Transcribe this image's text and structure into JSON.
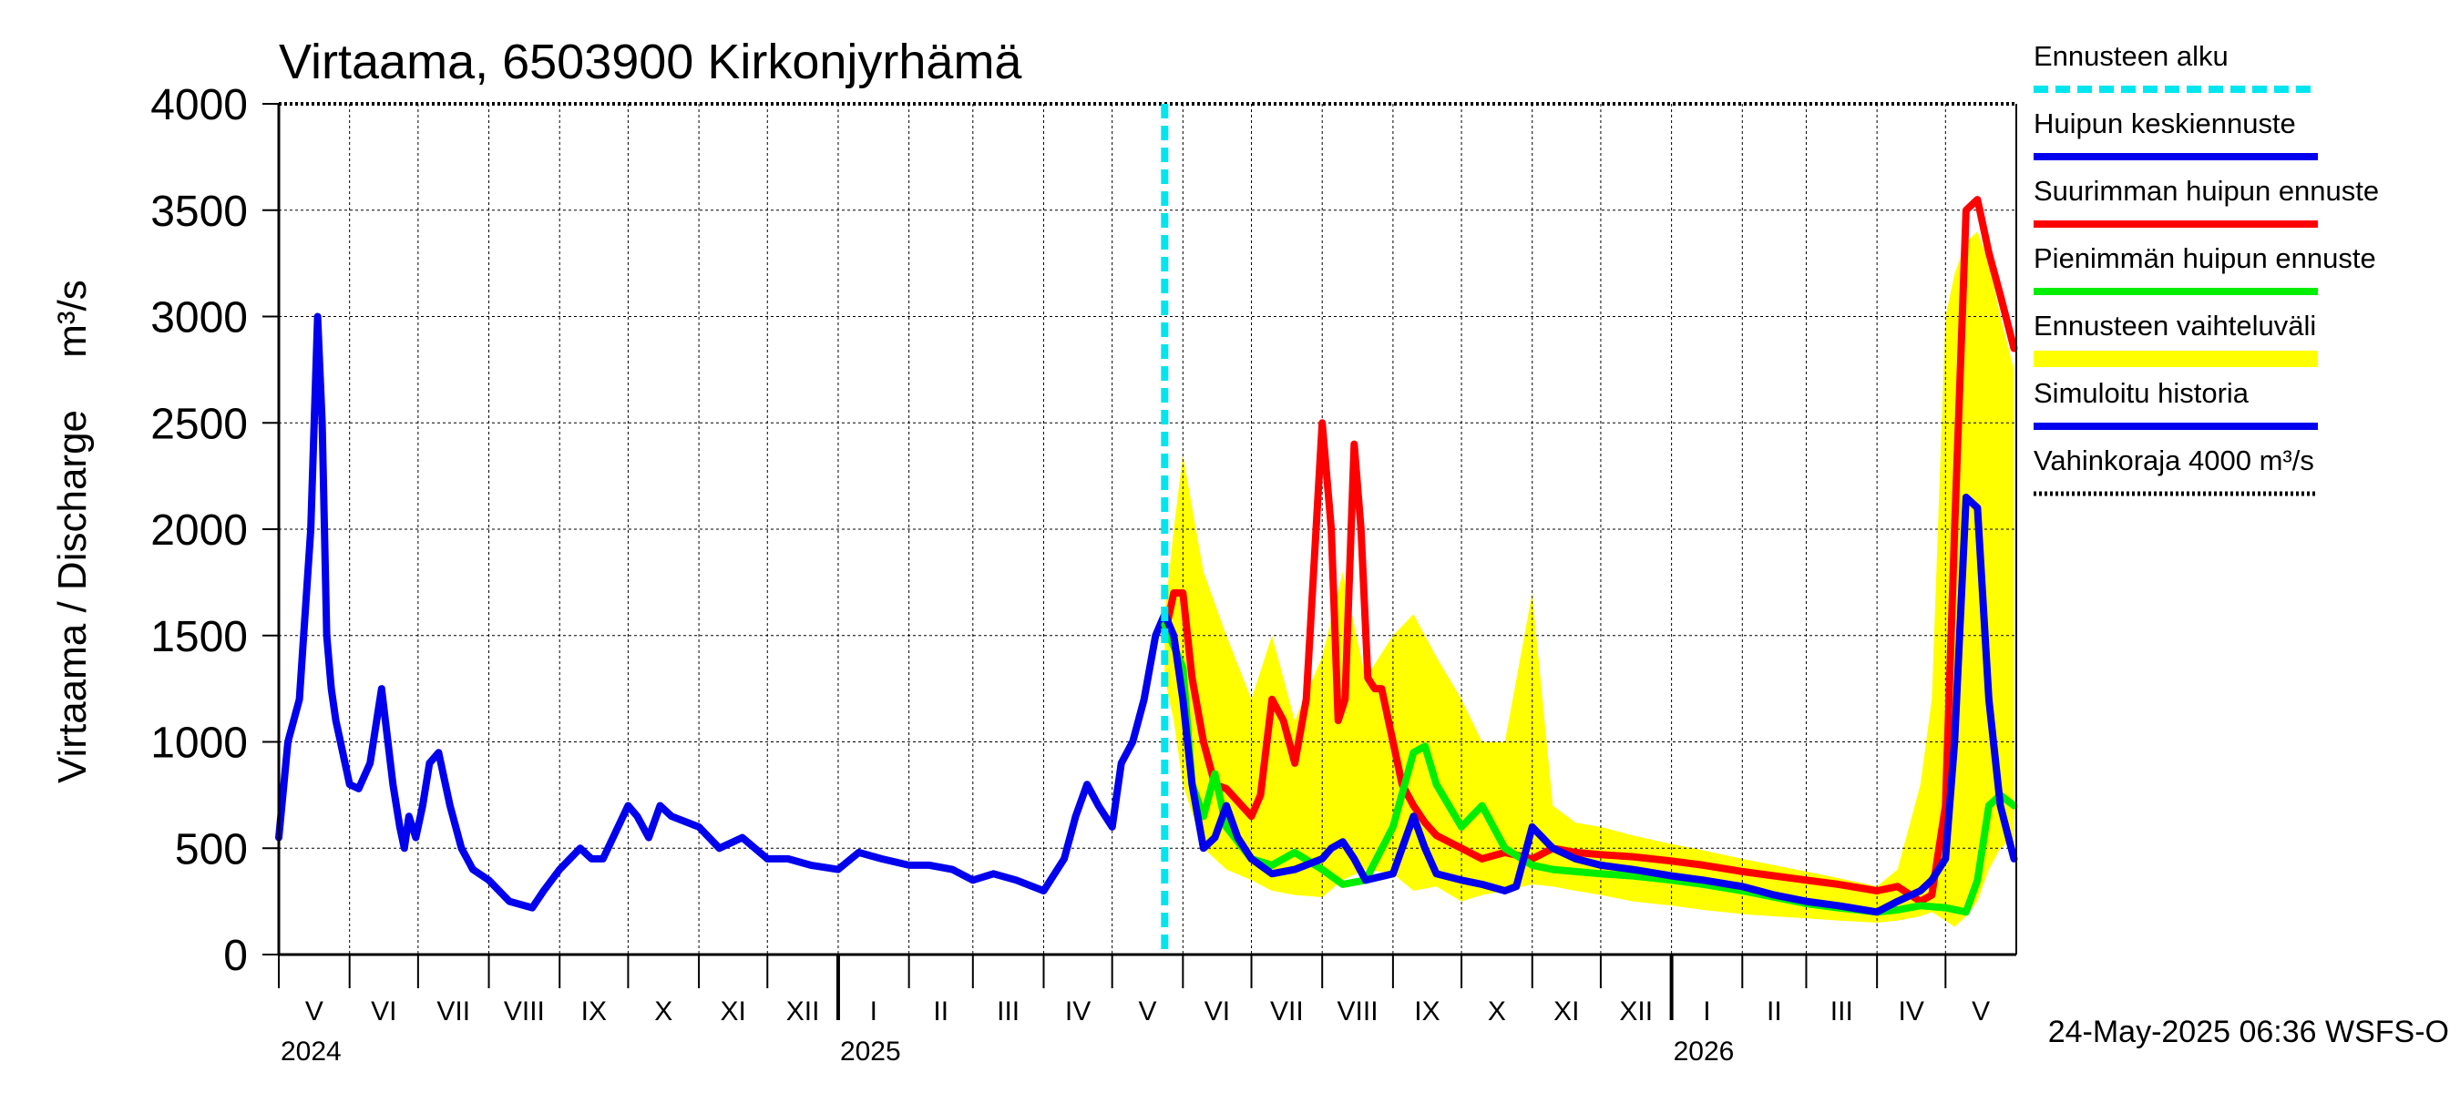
{
  "chart_data": {
    "type": "line",
    "title": "Virtaama, 6503900 Kirkonjyrhämä",
    "ylabel": "Virtaama / Discharge",
    "yunit": "m³/s",
    "ylim": [
      0,
      4000
    ],
    "yticks": [
      "0",
      "500",
      "1000",
      "1500",
      "2000",
      "2500",
      "3000",
      "3500",
      "4000"
    ],
    "xlim": [
      "2024-05-01",
      "2026-05-31"
    ],
    "months": [
      {
        "label": "V",
        "start": "2024-05-01"
      },
      {
        "label": "VI",
        "start": "2024-06-01"
      },
      {
        "label": "VII",
        "start": "2024-07-01"
      },
      {
        "label": "VIII",
        "start": "2024-08-01"
      },
      {
        "label": "IX",
        "start": "2024-09-01"
      },
      {
        "label": "X",
        "start": "2024-10-01"
      },
      {
        "label": "XI",
        "start": "2024-11-01"
      },
      {
        "label": "XII",
        "start": "2024-12-01"
      },
      {
        "label": "I",
        "start": "2025-01-01"
      },
      {
        "label": "II",
        "start": "2025-02-01"
      },
      {
        "label": "III",
        "start": "2025-03-01"
      },
      {
        "label": "IV",
        "start": "2025-04-01"
      },
      {
        "label": "V",
        "start": "2025-05-01"
      },
      {
        "label": "VI",
        "start": "2025-06-01"
      },
      {
        "label": "VII",
        "start": "2025-07-01"
      },
      {
        "label": "VIII",
        "start": "2025-08-01"
      },
      {
        "label": "IX",
        "start": "2025-09-01"
      },
      {
        "label": "X",
        "start": "2025-10-01"
      },
      {
        "label": "XI",
        "start": "2025-11-01"
      },
      {
        "label": "XII",
        "start": "2025-12-01"
      },
      {
        "label": "I",
        "start": "2026-01-01"
      },
      {
        "label": "II",
        "start": "2026-02-01"
      },
      {
        "label": "III",
        "start": "2026-03-01"
      },
      {
        "label": "IV",
        "start": "2026-04-01"
      },
      {
        "label": "V",
        "start": "2026-05-01"
      }
    ],
    "years": [
      {
        "label": "2024",
        "start": "2024-05-01"
      },
      {
        "label": "2025",
        "start": "2025-01-01"
      },
      {
        "label": "2026",
        "start": "2026-01-01"
      }
    ],
    "forecast_start": "2025-05-24",
    "damage_limit": 4000,
    "series": [
      {
        "name": "Simuloitu historia",
        "color": "#0000ee",
        "kind": "line",
        "x": [
          "2024-05-01",
          "2024-05-05",
          "2024-05-10",
          "2024-05-15",
          "2024-05-18",
          "2024-05-20",
          "2024-05-22",
          "2024-05-24",
          "2024-05-26",
          "2024-05-28",
          "2024-05-30",
          "2024-06-01",
          "2024-06-05",
          "2024-06-10",
          "2024-06-15",
          "2024-06-20",
          "2024-06-23",
          "2024-06-25",
          "2024-06-27",
          "2024-06-30",
          "2024-07-03",
          "2024-07-06",
          "2024-07-10",
          "2024-07-15",
          "2024-07-20",
          "2024-07-25",
          "2024-08-01",
          "2024-08-10",
          "2024-08-20",
          "2024-08-25",
          "2024-09-01",
          "2024-09-10",
          "2024-09-15",
          "2024-09-20",
          "2024-10-01",
          "2024-10-05",
          "2024-10-10",
          "2024-10-15",
          "2024-10-20",
          "2024-11-01",
          "2024-11-10",
          "2024-11-20",
          "2024-12-01",
          "2024-12-10",
          "2024-12-20",
          "2025-01-01",
          "2025-01-10",
          "2025-01-20",
          "2025-02-01",
          "2025-02-10",
          "2025-02-20",
          "2025-03-01",
          "2025-03-10",
          "2025-03-20",
          "2025-04-01",
          "2025-04-10",
          "2025-04-15",
          "2025-04-20",
          "2025-04-25",
          "2025-05-01",
          "2025-05-05",
          "2025-05-10",
          "2025-05-15",
          "2025-05-20",
          "2025-05-24"
        ],
        "y": [
          550,
          1000,
          1200,
          2000,
          3000,
          2500,
          1500,
          1250,
          1100,
          1000,
          900,
          800,
          780,
          900,
          1250,
          800,
          600,
          500,
          650,
          550,
          700,
          900,
          950,
          700,
          500,
          400,
          350,
          250,
          220,
          300,
          400,
          500,
          450,
          450,
          700,
          650,
          550,
          700,
          650,
          600,
          500,
          550,
          450,
          450,
          420,
          400,
          480,
          450,
          420,
          420,
          400,
          350,
          380,
          350,
          300,
          450,
          650,
          800,
          700,
          600,
          900,
          1000,
          1200,
          1500,
          1600
        ]
      },
      {
        "name": "Ennusteen vaihteluväli",
        "color": "#ffff00",
        "kind": "band",
        "x": [
          "2025-05-24",
          "2025-05-28",
          "2025-06-01",
          "2025-06-10",
          "2025-06-20",
          "2025-07-01",
          "2025-07-10",
          "2025-07-20",
          "2025-08-01",
          "2025-08-10",
          "2025-08-20",
          "2025-09-01",
          "2025-09-10",
          "2025-09-20",
          "2025-10-01",
          "2025-10-10",
          "2025-10-20",
          "2025-11-01",
          "2025-11-10",
          "2025-11-20",
          "2025-12-01",
          "2025-12-15",
          "2026-01-01",
          "2026-01-15",
          "2026-02-01",
          "2026-02-15",
          "2026-03-01",
          "2026-03-15",
          "2026-04-01",
          "2026-04-10",
          "2026-04-20",
          "2026-04-25",
          "2026-05-01",
          "2026-05-05",
          "2026-05-10",
          "2026-05-15",
          "2026-05-20",
          "2026-05-25",
          "2026-05-31"
        ],
        "upper": [
          1600,
          2000,
          2350,
          1800,
          1500,
          1200,
          1500,
          1100,
          1400,
          1800,
          1300,
          1500,
          1600,
          1400,
          1200,
          1000,
          1000,
          1700,
          700,
          620,
          600,
          560,
          520,
          490,
          450,
          420,
          390,
          360,
          320,
          400,
          800,
          1200,
          3000,
          3200,
          3350,
          3400,
          3250,
          3000,
          2750
        ],
        "lower": [
          1300,
          1100,
          800,
          500,
          400,
          350,
          300,
          280,
          270,
          350,
          400,
          380,
          300,
          320,
          250,
          280,
          300,
          330,
          320,
          300,
          280,
          250,
          230,
          210,
          190,
          180,
          170,
          160,
          150,
          160,
          180,
          200,
          160,
          130,
          180,
          250,
          400,
          500,
          550
        ]
      },
      {
        "name": "Suurimman huipun ennuste",
        "color": "#ff0000",
        "kind": "line",
        "x": [
          "2025-05-24",
          "2025-05-28",
          "2025-06-01",
          "2025-06-05",
          "2025-06-10",
          "2025-06-15",
          "2025-06-20",
          "2025-07-01",
          "2025-07-05",
          "2025-07-10",
          "2025-07-15",
          "2025-07-20",
          "2025-07-25",
          "2025-08-01",
          "2025-08-05",
          "2025-08-08",
          "2025-08-11",
          "2025-08-15",
          "2025-08-18",
          "2025-08-21",
          "2025-08-24",
          "2025-08-27",
          "2025-09-01",
          "2025-09-05",
          "2025-09-10",
          "2025-09-15",
          "2025-09-20",
          "2025-10-01",
          "2025-10-10",
          "2025-10-20",
          "2025-11-01",
          "2025-11-10",
          "2025-11-20",
          "2025-12-01",
          "2025-12-15",
          "2026-01-01",
          "2026-01-15",
          "2026-02-01",
          "2026-02-15",
          "2026-03-01",
          "2026-03-15",
          "2026-04-01",
          "2026-04-10",
          "2026-04-20",
          "2026-04-25",
          "2026-05-01",
          "2026-05-05",
          "2026-05-10",
          "2026-05-15",
          "2026-05-20",
          "2026-05-25",
          "2026-05-31"
        ],
        "y": [
          1500,
          1700,
          1700,
          1300,
          1000,
          800,
          780,
          650,
          750,
          1200,
          1100,
          900,
          1200,
          2500,
          2000,
          1100,
          1200,
          2400,
          2000,
          1300,
          1250,
          1250,
          1000,
          800,
          700,
          620,
          560,
          500,
          450,
          480,
          450,
          500,
          480,
          470,
          460,
          440,
          420,
          390,
          370,
          350,
          330,
          300,
          320,
          250,
          280,
          700,
          2000,
          3500,
          3550,
          3300,
          3100,
          2850
        ]
      },
      {
        "name": "Pienimmän huipun ennuste",
        "color": "#00ee00",
        "kind": "line",
        "x": [
          "2025-05-24",
          "2025-06-01",
          "2025-06-05",
          "2025-06-10",
          "2025-06-15",
          "2025-06-20",
          "2025-07-01",
          "2025-07-10",
          "2025-07-20",
          "2025-08-01",
          "2025-08-10",
          "2025-08-20",
          "2025-09-01",
          "2025-09-10",
          "2025-09-15",
          "2025-09-20",
          "2025-10-01",
          "2025-10-10",
          "2025-10-20",
          "2025-11-01",
          "2025-11-10",
          "2025-11-20",
          "2025-12-01",
          "2025-12-15",
          "2026-01-01",
          "2026-01-15",
          "2026-02-01",
          "2026-02-15",
          "2026-03-01",
          "2026-03-15",
          "2026-04-01",
          "2026-04-10",
          "2026-04-20",
          "2026-05-01",
          "2026-05-10",
          "2026-05-15",
          "2026-05-20",
          "2026-05-25",
          "2026-05-31"
        ],
        "y": [
          1550,
          1350,
          800,
          650,
          850,
          600,
          450,
          420,
          480,
          400,
          330,
          350,
          600,
          950,
          980,
          800,
          600,
          700,
          500,
          420,
          400,
          390,
          380,
          370,
          350,
          330,
          300,
          270,
          240,
          220,
          200,
          210,
          230,
          220,
          200,
          350,
          700,
          750,
          700
        ]
      },
      {
        "name": "Huipun keskiennuste",
        "color": "#0000ee",
        "kind": "line",
        "x": [
          "2025-05-24",
          "2025-05-28",
          "2025-06-01",
          "2025-06-05",
          "2025-06-10",
          "2025-06-15",
          "2025-06-20",
          "2025-06-25",
          "2025-07-01",
          "2025-07-10",
          "2025-07-20",
          "2025-08-01",
          "2025-08-05",
          "2025-08-10",
          "2025-08-15",
          "2025-08-20",
          "2025-09-01",
          "2025-09-05",
          "2025-09-10",
          "2025-09-15",
          "2025-09-20",
          "2025-10-01",
          "2025-10-10",
          "2025-10-20",
          "2025-10-25",
          "2025-11-01",
          "2025-11-10",
          "2025-11-20",
          "2025-12-01",
          "2025-12-15",
          "2026-01-01",
          "2026-01-15",
          "2026-02-01",
          "2026-02-15",
          "2026-03-01",
          "2026-03-15",
          "2026-04-01",
          "2026-04-10",
          "2026-04-20",
          "2026-04-25",
          "2026-05-01",
          "2026-05-05",
          "2026-05-10",
          "2026-05-15",
          "2026-05-20",
          "2026-05-25",
          "2026-05-31"
        ],
        "y": [
          1600,
          1500,
          1200,
          800,
          500,
          550,
          700,
          550,
          450,
          380,
          400,
          450,
          500,
          530,
          450,
          350,
          380,
          500,
          650,
          500,
          380,
          350,
          330,
          300,
          320,
          600,
          500,
          450,
          420,
          400,
          370,
          350,
          320,
          280,
          250,
          230,
          200,
          250,
          300,
          350,
          450,
          1000,
          2150,
          2100,
          1200,
          700,
          450
        ]
      }
    ]
  },
  "legend": [
    {
      "label": "Ennusteen alku",
      "color": "#00e5ee",
      "style": "dashed"
    },
    {
      "label": "Huipun keskiennuste",
      "color": "#0000ee",
      "style": "solid"
    },
    {
      "label": "Suurimman huipun ennuste",
      "color": "#ff0000",
      "style": "solid"
    },
    {
      "label": "Pienimmän huipun ennuste",
      "color": "#00ee00",
      "style": "solid"
    },
    {
      "label": "Ennusteen vaihteluväli",
      "color": "#ffff00",
      "style": "band"
    },
    {
      "label": "Simuloitu historia",
      "color": "#0000ee",
      "style": "solid"
    },
    {
      "label": "Vahinkoraja 4000 m³/s",
      "color": "#000000",
      "style": "dotted"
    }
  ],
  "footer": "24-May-2025 06:36 WSFS-O"
}
